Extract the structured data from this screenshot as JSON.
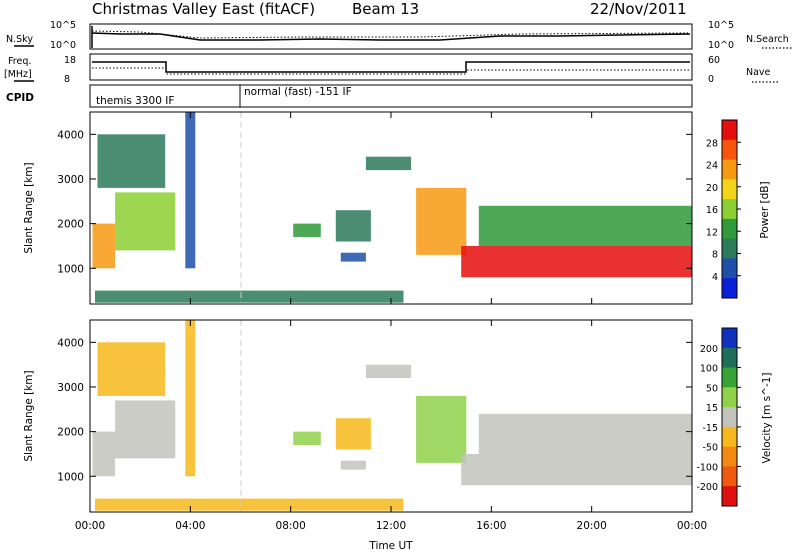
{
  "header": {
    "station": "Christmas Valley East (fitACF)",
    "beam": "Beam 13",
    "date": "22/Nov/2011"
  },
  "panels": {
    "nsky_label": "N.Sky",
    "nsky_ticks": [
      "10^5",
      "10^0"
    ],
    "nsearch_label": "N.Search",
    "nsearch_ticks": [
      "10^5",
      "10^0"
    ],
    "freq_label": "Freq.",
    "freq_unit": "[MHz]",
    "freq_ticks": [
      "18",
      "8"
    ],
    "nave_label": "Nave",
    "nave_ticks": [
      "60",
      "0"
    ],
    "cpid_label": "CPID",
    "cpid_segments": [
      "themis 3300 IF",
      "normal (fast) -151 IF"
    ]
  },
  "colors": {
    "power": [
      "#0a1fd8",
      "#1f4fa8",
      "#2b7a5c",
      "#2f9a3a",
      "#8ccf32",
      "#f2d419",
      "#f79a12",
      "#f7540d",
      "#e50d0d"
    ],
    "velocity": [
      "#1230c0",
      "#1f6e5a",
      "#37a435",
      "#8fd14a",
      "#c3c3bc",
      "#f6b81a",
      "#f38a15",
      "#ef5a10",
      "#e01010"
    ]
  },
  "chart_data": [
    {
      "type": "heatmap",
      "name": "Power",
      "xlabel": "",
      "ylabel": "Slant Range [km]",
      "x_ticks": [
        "00:00",
        "04:00",
        "08:00",
        "12:00",
        "16:00",
        "20:00",
        "00:00"
      ],
      "y_ticks": [
        "1000",
        "2000",
        "3000",
        "4000"
      ],
      "xlim_hours": [
        0,
        24
      ],
      "ylim_km": [
        200,
        4500
      ],
      "colorbar_label": "Power [dB]",
      "colorbar_ticks": [
        "28",
        "24",
        "20",
        "16",
        "12",
        "8",
        "4"
      ],
      "colorbar_range": [
        0,
        30
      ],
      "regions": [
        {
          "t": [
            0.1,
            1.0
          ],
          "r": [
            1000,
            2000
          ],
          "value": 22
        },
        {
          "t": [
            1.0,
            3.4
          ],
          "r": [
            1400,
            2700
          ],
          "value": 14
        },
        {
          "t": [
            0.3,
            3.0
          ],
          "r": [
            2800,
            4000
          ],
          "value": 8
        },
        {
          "t": [
            3.8,
            4.2
          ],
          "r": [
            1000,
            4500
          ],
          "value": 6
        },
        {
          "t": [
            0.2,
            12.5
          ],
          "r": [
            230,
            500
          ],
          "value": 7
        },
        {
          "t": [
            8.1,
            9.2
          ],
          "r": [
            1700,
            2000
          ],
          "value": 10
        },
        {
          "t": [
            9.8,
            11.2
          ],
          "r": [
            1600,
            2300
          ],
          "value": 8
        },
        {
          "t": [
            10.0,
            11.0
          ],
          "r": [
            1150,
            1350
          ],
          "value": 6
        },
        {
          "t": [
            11.0,
            12.8
          ],
          "r": [
            3200,
            3500
          ],
          "value": 8
        },
        {
          "t": [
            13.0,
            15.0
          ],
          "r": [
            1300,
            2800
          ],
          "value": 20
        },
        {
          "t": [
            14.8,
            24.0
          ],
          "r": [
            800,
            1500
          ],
          "value": 27
        },
        {
          "t": [
            15.5,
            24.0
          ],
          "r": [
            1500,
            2400
          ],
          "value": 12
        }
      ]
    },
    {
      "type": "heatmap",
      "name": "Velocity",
      "xlabel": "Time UT",
      "ylabel": "Slant Range [km]",
      "x_ticks": [
        "00:00",
        "04:00",
        "08:00",
        "12:00",
        "16:00",
        "20:00",
        "00:00"
      ],
      "y_ticks": [
        "1000",
        "2000",
        "3000",
        "4000"
      ],
      "xlim_hours": [
        0,
        24
      ],
      "ylim_km": [
        200,
        4500
      ],
      "colorbar_label": "Velocity [m s^-1]",
      "colorbar_ticks": [
        "200",
        "100",
        "50",
        "15",
        "-15",
        "-50",
        "-100",
        "-200"
      ],
      "colorbar_range": [
        -250,
        250
      ],
      "regions": [
        {
          "t": [
            0.1,
            1.0
          ],
          "r": [
            1000,
            2000
          ],
          "value": 0
        },
        {
          "t": [
            1.0,
            3.4
          ],
          "r": [
            1400,
            2700
          ],
          "value": 0
        },
        {
          "t": [
            0.3,
            3.0
          ],
          "r": [
            2800,
            4000
          ],
          "value": -30
        },
        {
          "t": [
            3.8,
            4.2
          ],
          "r": [
            1000,
            4500
          ],
          "value": -60
        },
        {
          "t": [
            0.2,
            12.5
          ],
          "r": [
            230,
            500
          ],
          "value": -60
        },
        {
          "t": [
            8.1,
            9.2
          ],
          "r": [
            1700,
            2000
          ],
          "value": 30
        },
        {
          "t": [
            9.8,
            11.2
          ],
          "r": [
            1600,
            2300
          ],
          "value": -80
        },
        {
          "t": [
            10.0,
            11.0
          ],
          "r": [
            1150,
            1350
          ],
          "value": -20
        },
        {
          "t": [
            11.0,
            12.8
          ],
          "r": [
            3200,
            3500
          ],
          "value": 0
        },
        {
          "t": [
            13.0,
            15.0
          ],
          "r": [
            1300,
            2800
          ],
          "value": 40
        },
        {
          "t": [
            14.8,
            24.0
          ],
          "r": [
            800,
            1500
          ],
          "value": 0
        },
        {
          "t": [
            15.5,
            24.0
          ],
          "r": [
            1500,
            2400
          ],
          "value": 0
        }
      ]
    }
  ]
}
